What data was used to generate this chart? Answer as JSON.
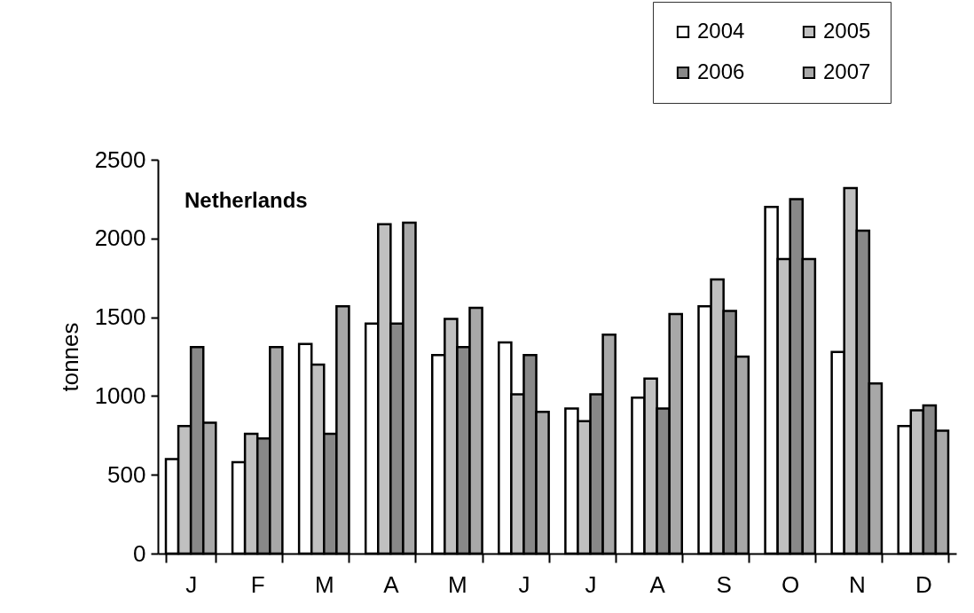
{
  "chart_data": {
    "type": "bar",
    "ylabel": "tonnes",
    "categories": [
      "J",
      "F",
      "M",
      "A",
      "M",
      "J",
      "J",
      "A",
      "S",
      "O",
      "N",
      "D"
    ],
    "series": [
      {
        "name": "2004",
        "color": "#ffffff",
        "values": [
          600,
          580,
          1330,
          1460,
          1260,
          1340,
          920,
          990,
          1570,
          2200,
          1280,
          810
        ]
      },
      {
        "name": "2005",
        "color": "#c0c0c0",
        "values": [
          810,
          760,
          1200,
          2090,
          1490,
          1010,
          840,
          1110,
          1740,
          1870,
          2320,
          910
        ]
      },
      {
        "name": "2006",
        "color": "#888888",
        "values": [
          1310,
          730,
          760,
          1460,
          1310,
          1260,
          1010,
          920,
          1540,
          2250,
          2050,
          940
        ]
      },
      {
        "name": "2007",
        "color": "#a8a8a8",
        "values": [
          830,
          1310,
          1570,
          2100,
          1560,
          900,
          1390,
          1520,
          1250,
          1870,
          1080,
          780
        ]
      }
    ],
    "ylim": [
      0,
      2500
    ],
    "yticks": [
      0,
      500,
      1000,
      1500,
      2000,
      2500
    ],
    "grid": false,
    "legend": "top right",
    "annotations": [
      "Netherlands"
    ]
  }
}
